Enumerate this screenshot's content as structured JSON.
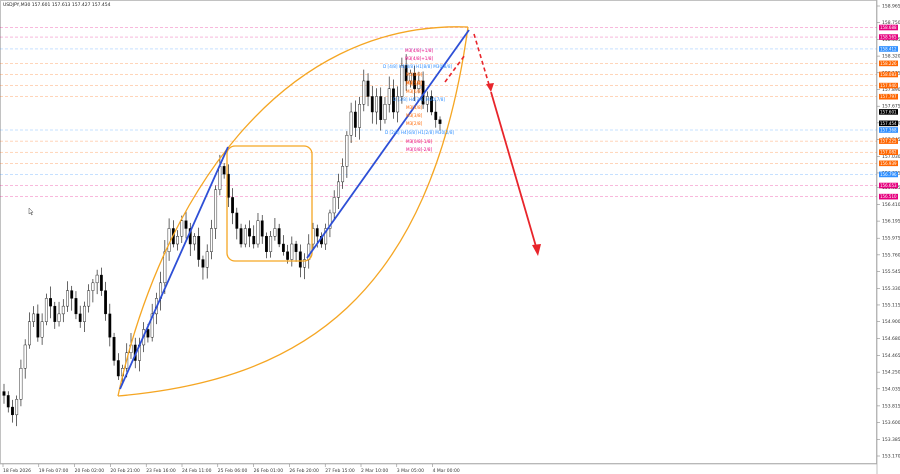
{
  "header": {
    "symbol_info": "USDJPY,M30  157.601 157.613 157.427 157.454"
  },
  "chart_data": {
    "type": "candlestick",
    "title": "",
    "xlabel": "",
    "ylabel": "",
    "ylim": [
      153.17,
      158.965
    ],
    "price_ticks": [
      "158.965",
      "158.750",
      "158.535",
      "158.320",
      "158.105",
      "157.890",
      "157.675",
      "157.460",
      "157.245",
      "157.030",
      "156.815",
      "156.625",
      "156.410",
      "156.195",
      "155.975",
      "155.760",
      "155.545",
      "155.330",
      "155.115",
      "154.900",
      "154.680",
      "154.465",
      "154.250",
      "154.035",
      "153.815",
      "153.600",
      "153.385",
      "153.170"
    ],
    "time_ticks": [
      "18 Feb 2026",
      "19 Feb 07:00",
      "20 Feb 02:00",
      "20 Feb 21:00",
      "23 Feb 16:00",
      "24 Feb 11:00",
      "25 Feb 06:00",
      "26 Feb 01:00",
      "26 Feb 20:00",
      "27 Feb 15:00",
      "2 Mar 10:00",
      "3 Mar 05:00",
      "4 Mar 00:00"
    ],
    "closes": [
      153.95,
      153.8,
      153.7,
      153.9,
      154.3,
      154.6,
      154.9,
      155.0,
      154.7,
      154.9,
      155.2,
      155.1,
      154.9,
      155.0,
      155.1,
      155.3,
      155.2,
      155.0,
      154.9,
      155.1,
      155.3,
      155.4,
      155.5,
      155.3,
      155.0,
      154.7,
      154.4,
      154.2,
      154.3,
      154.5,
      154.6,
      154.4,
      154.6,
      154.8,
      154.7,
      155.0,
      155.2,
      155.4,
      155.8,
      156.1,
      155.9,
      156.0,
      156.2,
      156.1,
      155.9,
      156.0,
      155.7,
      155.6,
      155.8,
      156.1,
      156.6,
      156.9,
      156.8,
      156.5,
      156.3,
      156.1,
      155.9,
      156.1,
      156.0,
      155.9,
      156.2,
      156.0,
      155.8,
      156.0,
      156.1,
      155.9,
      155.8,
      155.7,
      155.9,
      155.8,
      155.6,
      155.7,
      155.9,
      156.1,
      156.0,
      155.9,
      156.1,
      156.3,
      156.5,
      156.7,
      156.9,
      157.3,
      157.6,
      157.4,
      157.7,
      158.0,
      157.8,
      157.6,
      157.8,
      157.5,
      157.7,
      157.9,
      157.6,
      157.8,
      158.2,
      158.0,
      158.1,
      157.9,
      158.0,
      157.7,
      157.8,
      157.6,
      157.5,
      157.45
    ],
    "current_price": "157.454",
    "level_labels": [
      {
        "text": "M3[4/8]+1/8]",
        "color": "#e6007e"
      },
      {
        "text": "M3[4/8]+1/8]",
        "color": "#e6007e"
      },
      {
        "text": "D [4/8] H4[8/8] H1[8/8] M30[8/8]",
        "color": "#2f8fff"
      },
      {
        "text": "M3[8/8]",
        "color": "#ff6600"
      },
      {
        "text": "M3[7/8]",
        "color": "#ff6600"
      },
      {
        "text": "D [3/8] H4[7/8] M30[7/8]",
        "color": "#2f8fff"
      },
      {
        "text": "M3[6/8]",
        "color": "#ff6600"
      },
      {
        "text": "M3[5/8]",
        "color": "#ff6600"
      },
      {
        "text": "M3[4/8]",
        "color": "#ff6600"
      },
      {
        "text": "M3[3/8]",
        "color": "#ff6600"
      },
      {
        "text": "M3[2/8]",
        "color": "#ff6600"
      },
      {
        "text": "D [2/8] H4[6/8] H1[2/8] M30[2/8]",
        "color": "#2f8fff"
      },
      {
        "text": "M3[0/8]-1/8]",
        "color": "#e6007e"
      },
      {
        "text": "M3[0/8]-2/8]",
        "color": "#e6007e"
      }
    ],
    "right_badges": [
      {
        "price": "158.688",
        "color": "#e6007e"
      },
      {
        "price": "158.565",
        "color": "#e6007e"
      },
      {
        "price": "158.412",
        "color": "#2f8fff"
      },
      {
        "price": "158.226",
        "color": "#ff6600"
      },
      {
        "price": "158.083",
        "color": "#ff6600"
      },
      {
        "price": "157.940",
        "color": "#ff6600"
      },
      {
        "price": "157.797",
        "color": "#ff6600"
      },
      {
        "price": "157.601",
        "color": "#000000"
      },
      {
        "price": "157.454",
        "color": "#000000"
      },
      {
        "price": "157.368",
        "color": "#2f8fff"
      },
      {
        "price": "157.225",
        "color": "#ff6600"
      },
      {
        "price": "157.082",
        "color": "#ff6600"
      },
      {
        "price": "156.939",
        "color": "#ff6600"
      },
      {
        "price": "156.796",
        "color": "#2f8fff"
      },
      {
        "price": "156.653",
        "color": "#e6007e"
      },
      {
        "price": "156.510",
        "color": "#e6007e"
      }
    ],
    "colors": {
      "candle": "#000000",
      "trend": "#2e4fd6",
      "arc": "#f5a623",
      "forecast": "#e8252b",
      "level_magenta": "#e6007e",
      "level_orange": "#ff6600",
      "level_blue": "#2f8fff"
    }
  }
}
